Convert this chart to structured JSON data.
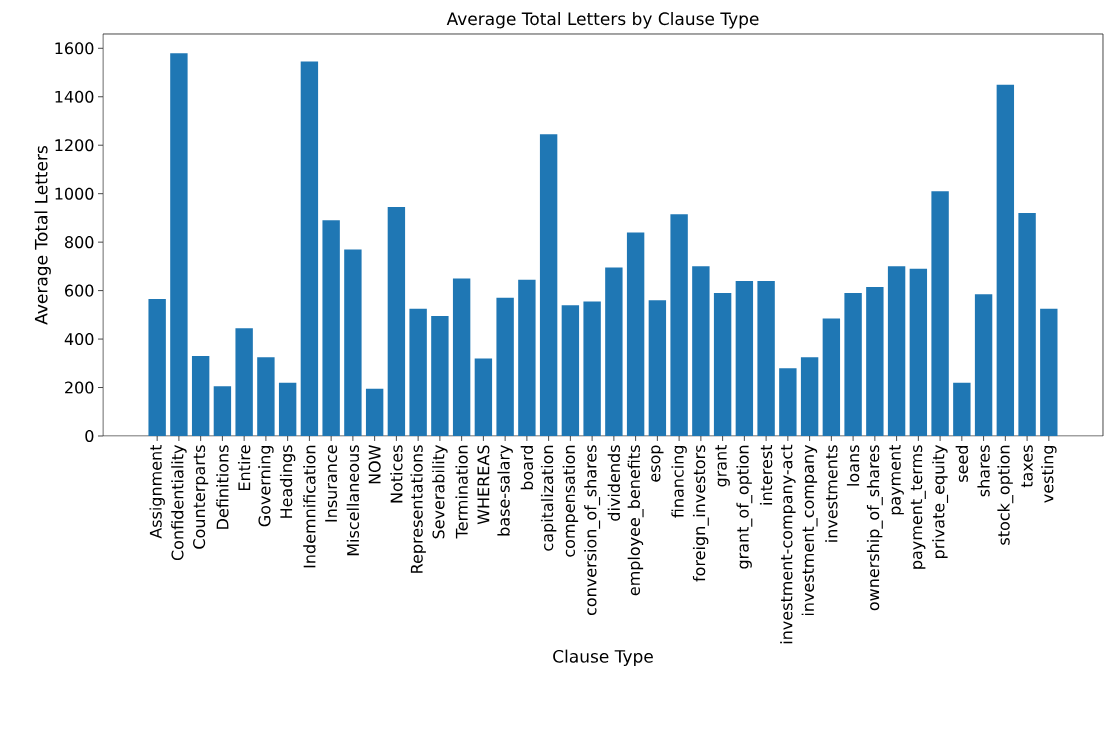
{
  "chart_data": {
    "type": "bar",
    "title": "Average Total Letters by Clause Type",
    "xlabel": "Clause Type",
    "ylabel": "Average Total Letters",
    "categories": [
      "Assignment",
      "Confidentiality",
      "Counterparts",
      "Definitions",
      "Entire",
      "Governing",
      "Headings",
      "Indemnification",
      "Insurance",
      "Miscellaneous",
      "NOW",
      "Notices",
      "Representations",
      "Severability",
      "Termination",
      "WHEREAS",
      "base-salary",
      "board",
      "capitalization",
      "compensation",
      "conversion_of_shares",
      "dividends",
      "employee_benefits",
      "esop",
      "financing",
      "foreign_investors",
      "grant",
      "grant_of_option",
      "interest",
      "investment-company-act",
      "investment_company",
      "investments",
      "loans",
      "ownership_of_shares",
      "payment",
      "payment_terms",
      "private_equity",
      "seed",
      "shares",
      "stock_option",
      "taxes",
      "vesting"
    ],
    "values": [
      565,
      1580,
      330,
      205,
      445,
      325,
      220,
      1545,
      890,
      770,
      195,
      945,
      525,
      495,
      650,
      320,
      570,
      645,
      1245,
      540,
      555,
      695,
      840,
      560,
      915,
      700,
      590,
      640,
      640,
      280,
      325,
      485,
      590,
      615,
      700,
      690,
      1010,
      220,
      585,
      1450,
      920,
      525
    ],
    "color": "#1f77b4",
    "ylim": [
      0,
      1659
    ],
    "yticks": [
      0,
      200,
      400,
      600,
      800,
      1000,
      1200,
      1400,
      1600
    ]
  }
}
